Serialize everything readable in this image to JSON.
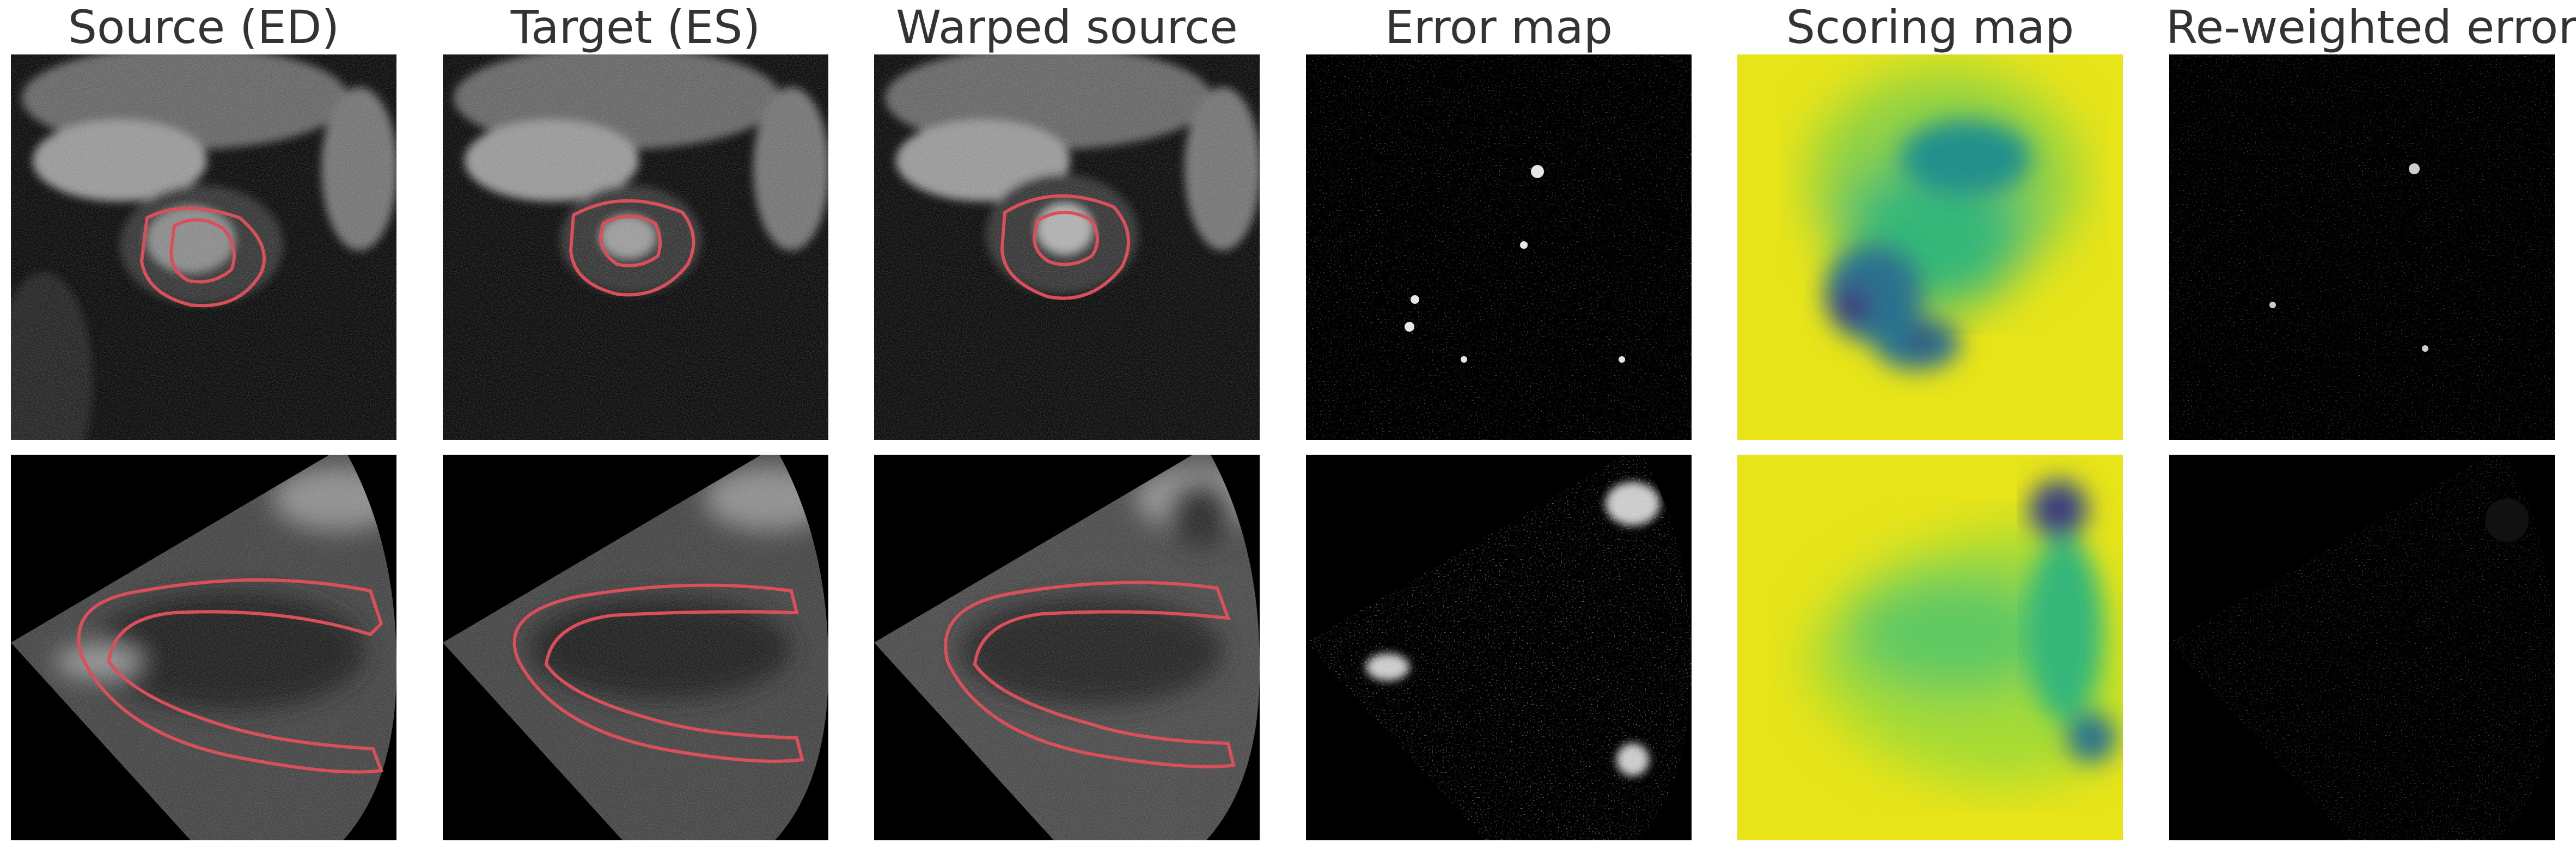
{
  "columns": [
    {
      "title": "Source (ED)"
    },
    {
      "title": "Target (ES)"
    },
    {
      "title": "Warped source"
    },
    {
      "title": "Error map"
    },
    {
      "title": "Scoring map"
    },
    {
      "title": "Re-weighted error"
    }
  ],
  "colors": {
    "contour": "#d9505a",
    "viridis_high": "#e7e419",
    "viridis_mid": "#21a585",
    "viridis_low": "#440154",
    "background": "#000000"
  }
}
